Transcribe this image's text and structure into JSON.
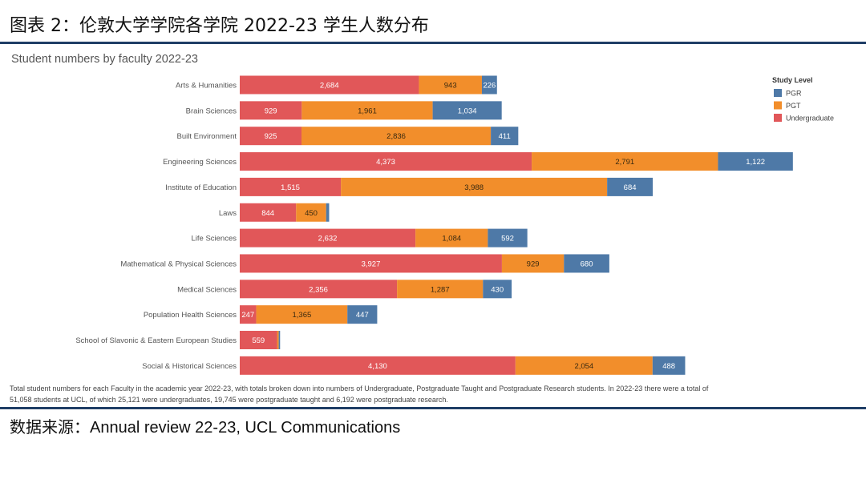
{
  "figure": {
    "title": "图表 2：伦敦大学学院各学院 2022-23 学生人数分布",
    "source": "数据来源：Annual review 22-23, UCL Communications"
  },
  "chart_data": {
    "type": "bar",
    "orientation": "horizontal",
    "stacked": true,
    "title": "Student numbers by faculty 2022-23",
    "xlabel": "",
    "ylabel": "",
    "xlim": [
      0,
      8300
    ],
    "grid": false,
    "legend": {
      "title": "Study Level",
      "placement": "right",
      "entries": [
        "PGR",
        "PGT",
        "Undergraduate"
      ]
    },
    "categories": [
      "Arts & Humanities",
      "Brain Sciences",
      "Built Environment",
      "Engineering Sciences",
      "Institute of Education",
      "Laws",
      "Life Sciences",
      "Mathematical & Physical Sciences",
      "Medical Sciences",
      "Population Health Sciences",
      "School of Slavonic & Eastern European Studies",
      "Social & Historical Sciences"
    ],
    "series": [
      {
        "name": "Undergraduate",
        "color": "#e15759",
        "values": [
          2684,
          929,
          925,
          4373,
          1515,
          844,
          2632,
          3927,
          2356,
          247,
          559,
          4130
        ],
        "labels": [
          "2,684",
          "929",
          "925",
          "4,373",
          "1,515",
          "844",
          "2,632",
          "3,927",
          "2,356",
          "247",
          "559",
          "4,130"
        ]
      },
      {
        "name": "PGT",
        "color": "#f28e2b",
        "values": [
          943,
          1961,
          2836,
          2791,
          3988,
          450,
          1084,
          929,
          1287,
          1365,
          25,
          2054
        ],
        "labels": [
          "943",
          "1,961",
          "2,836",
          "2,791",
          "3,988",
          "450",
          "1,084",
          "929",
          "1,287",
          "1,365",
          "",
          "2,054"
        ]
      },
      {
        "name": "PGR",
        "color": "#4e79a7",
        "values": [
          226,
          1034,
          411,
          1122,
          684,
          45,
          592,
          680,
          430,
          447,
          20,
          488
        ],
        "labels": [
          "226",
          "1,034",
          "411",
          "1,122",
          "684",
          "",
          "592",
          "680",
          "430",
          "447",
          "",
          "488"
        ]
      }
    ],
    "caption": [
      "Total student numbers for each Faculty in the academic year 2022-23, with totals broken down into numbers of Undergraduate, Postgraduate Taught and Postgraduate Research students. In 2022-23 there were a total of",
      "51,058 students at UCL, of which 25,121 were undergraduates, 19,745 were postgraduate taught and 6,192 were postgraduate research."
    ]
  }
}
